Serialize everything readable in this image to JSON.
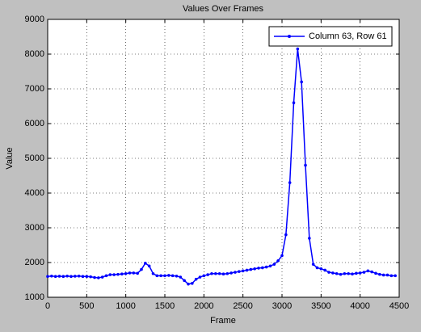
{
  "chart_data": {
    "type": "line",
    "title": "Values Over Frames",
    "x_label": "Frame",
    "y_label": "Value",
    "x": [
      0,
      50,
      100,
      150,
      200,
      250,
      300,
      350,
      400,
      450,
      500,
      550,
      600,
      650,
      700,
      750,
      800,
      850,
      900,
      950,
      1000,
      1050,
      1100,
      1150,
      1200,
      1250,
      1300,
      1350,
      1400,
      1450,
      1500,
      1550,
      1600,
      1650,
      1700,
      1750,
      1800,
      1850,
      1900,
      1950,
      2000,
      2050,
      2100,
      2150,
      2200,
      2250,
      2300,
      2350,
      2400,
      2450,
      2500,
      2550,
      2600,
      2650,
      2700,
      2750,
      2800,
      2850,
      2900,
      2950,
      3000,
      3050,
      3100,
      3150,
      3200,
      3250,
      3300,
      3350,
      3400,
      3450,
      3500,
      3550,
      3600,
      3650,
      3700,
      3750,
      3800,
      3850,
      3900,
      3950,
      4000,
      4050,
      4100,
      4150,
      4200,
      4250,
      4300,
      4350,
      4400,
      4450
    ],
    "series": [
      {
        "name": "Column 63, Row 61",
        "color": "#0000ff",
        "values": [
          1600,
          1610,
          1600,
          1605,
          1600,
          1610,
          1600,
          1605,
          1610,
          1600,
          1600,
          1590,
          1570,
          1560,
          1580,
          1620,
          1650,
          1650,
          1660,
          1670,
          1680,
          1700,
          1700,
          1690,
          1800,
          1980,
          1900,
          1680,
          1620,
          1620,
          1620,
          1630,
          1620,
          1610,
          1580,
          1480,
          1380,
          1400,
          1520,
          1580,
          1620,
          1650,
          1680,
          1680,
          1680,
          1670,
          1680,
          1700,
          1720,
          1740,
          1760,
          1780,
          1800,
          1820,
          1840,
          1850,
          1870,
          1900,
          1950,
          2050,
          2200,
          2800,
          4300,
          6600,
          8150,
          7200,
          4800,
          2700,
          1950,
          1850,
          1820,
          1780,
          1720,
          1700,
          1680,
          1660,
          1680,
          1680,
          1670,
          1690,
          1700,
          1720,
          1760,
          1730,
          1690,
          1660,
          1640,
          1640,
          1620,
          1620
        ]
      }
    ],
    "xlim": [
      0,
      4500
    ],
    "xticks": [
      0,
      500,
      1000,
      1500,
      2000,
      2500,
      3000,
      3500,
      4000,
      4500
    ],
    "ylim": [
      1000,
      9000
    ],
    "yticks": [
      1000,
      2000,
      3000,
      4000,
      5000,
      6000,
      7000,
      8000,
      9000
    ],
    "grid": true,
    "legend": "upper right"
  }
}
